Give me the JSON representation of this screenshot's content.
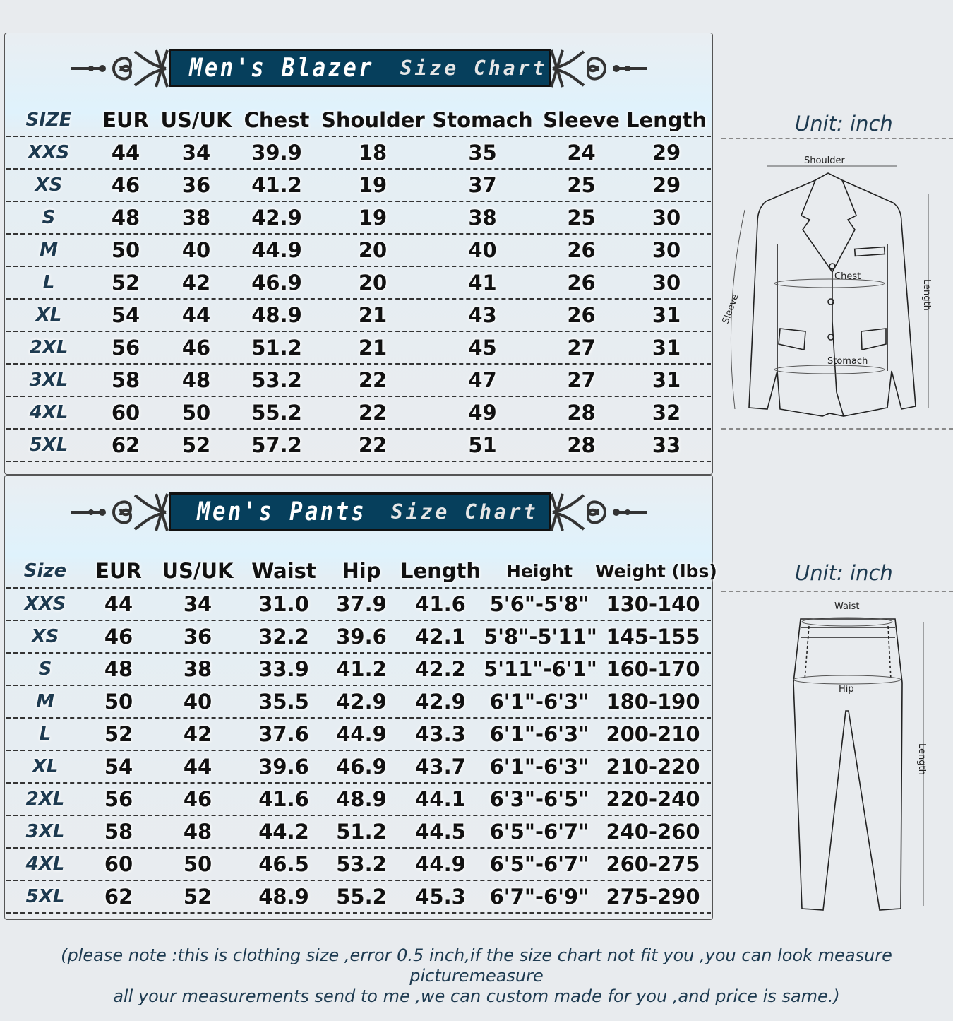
{
  "blazer": {
    "title_main": "Men's Blazer",
    "title_sub": "Size Chart",
    "headers": [
      "SIZE",
      "EUR",
      "US/UK",
      "Chest",
      "Shoulder",
      "Stomach",
      "Sleeve",
      "Length"
    ],
    "rows": [
      [
        "XXS",
        "44",
        "34",
        "39.9",
        "18",
        "35",
        "24",
        "29"
      ],
      [
        "XS",
        "46",
        "36",
        "41.2",
        "19",
        "37",
        "25",
        "29"
      ],
      [
        "S",
        "48",
        "38",
        "42.9",
        "19",
        "38",
        "25",
        "30"
      ],
      [
        "M",
        "50",
        "40",
        "44.9",
        "20",
        "40",
        "26",
        "30"
      ],
      [
        "L",
        "52",
        "42",
        "46.9",
        "20",
        "41",
        "26",
        "30"
      ],
      [
        "XL",
        "54",
        "44",
        "48.9",
        "21",
        "43",
        "26",
        "31"
      ],
      [
        "2XL",
        "56",
        "46",
        "51.2",
        "21",
        "45",
        "27",
        "31"
      ],
      [
        "3XL",
        "58",
        "48",
        "53.2",
        "22",
        "47",
        "27",
        "31"
      ],
      [
        "4XL",
        "60",
        "50",
        "55.2",
        "22",
        "49",
        "28",
        "32"
      ],
      [
        "5XL",
        "62",
        "52",
        "57.2",
        "22",
        "51",
        "28",
        "33"
      ]
    ],
    "unit": "Unit: inch",
    "diagram_labels": {
      "shoulder": "Shoulder",
      "chest": "Chest",
      "stomach": "Stomach",
      "sleeve": "Sleeve",
      "length": "Length"
    }
  },
  "pants": {
    "title_main": "Men's Pants",
    "title_sub": "Size Chart",
    "headers": [
      "Size",
      "EUR",
      "US/UK",
      "Waist",
      "Hip",
      "Length",
      "Height",
      "Weight (lbs)"
    ],
    "rows": [
      [
        "XXS",
        "44",
        "34",
        "31.0",
        "37.9",
        "41.6",
        "5'6\"-5'8\"",
        "130-140"
      ],
      [
        "XS",
        "46",
        "36",
        "32.2",
        "39.6",
        "42.1",
        "5'8\"-5'11\"",
        "145-155"
      ],
      [
        "S",
        "48",
        "38",
        "33.9",
        "41.2",
        "42.2",
        "5'11\"-6'1\"",
        "160-170"
      ],
      [
        "M",
        "50",
        "40",
        "35.5",
        "42.9",
        "42.9",
        "6'1\"-6'3\"",
        "180-190"
      ],
      [
        "L",
        "52",
        "42",
        "37.6",
        "44.9",
        "43.3",
        "6'1\"-6'3\"",
        "200-210"
      ],
      [
        "XL",
        "54",
        "44",
        "39.6",
        "46.9",
        "43.7",
        "6'1\"-6'3\"",
        "210-220"
      ],
      [
        "2XL",
        "56",
        "46",
        "41.6",
        "48.9",
        "44.1",
        "6'3\"-6'5\"",
        "220-240"
      ],
      [
        "3XL",
        "58",
        "48",
        "44.2",
        "51.2",
        "44.5",
        "6'5\"-6'7\"",
        "240-260"
      ],
      [
        "4XL",
        "60",
        "50",
        "46.5",
        "53.2",
        "44.9",
        "6'5\"-6'7\"",
        "260-275"
      ],
      [
        "5XL",
        "62",
        "52",
        "48.9",
        "55.2",
        "45.3",
        "6'7\"-6'9\"",
        "275-290"
      ]
    ],
    "unit": "Unit: inch",
    "diagram_labels": {
      "waist": "Waist",
      "hip": "Hip",
      "length": "Length"
    }
  },
  "note": {
    "line1": "(please note :this is clothing size ,error 0.5 inch,if the size chart not fit you ,you can look measure picturemeasure",
    "line2": "all your measurements send to me ,we can custom made for you ,and price is same.)"
  },
  "colors": {
    "banner": "#063f5c",
    "accent_text": "#1d3a50",
    "background": "#e8ebee"
  }
}
